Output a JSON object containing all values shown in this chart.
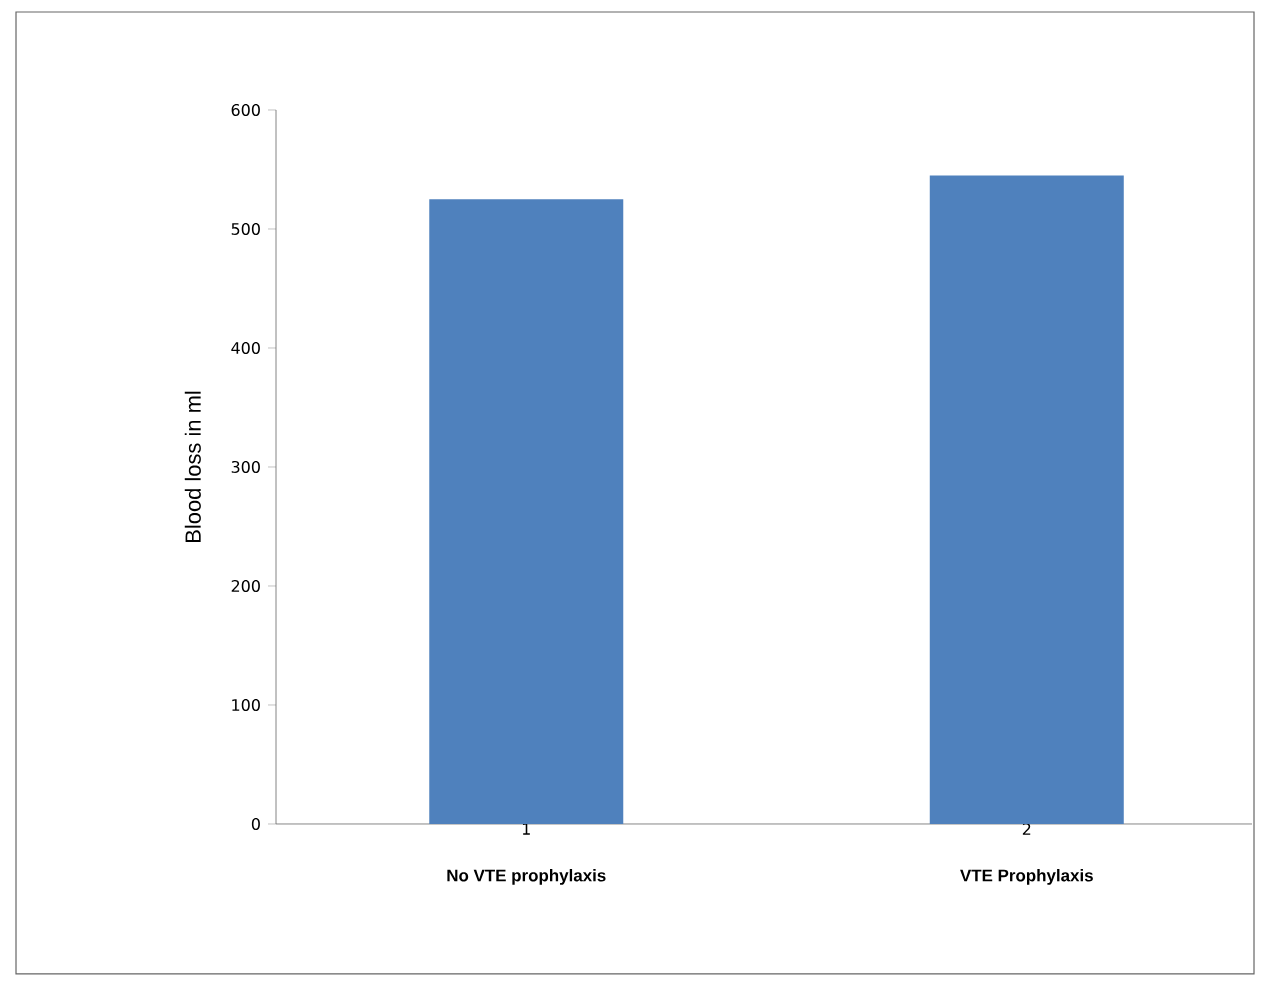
{
  "chart_data": {
    "type": "bar",
    "categories": [
      "1",
      "2"
    ],
    "values": [
      525,
      545
    ],
    "color": "#4f81bd",
    "ylabel": "Blood loss in ml",
    "ylim": [
      0,
      600
    ],
    "yticks": [
      0,
      100,
      200,
      300,
      400,
      500,
      600
    ],
    "annotations": [
      "No VTE prophylaxis",
      "VTE Prophylaxis"
    ]
  }
}
